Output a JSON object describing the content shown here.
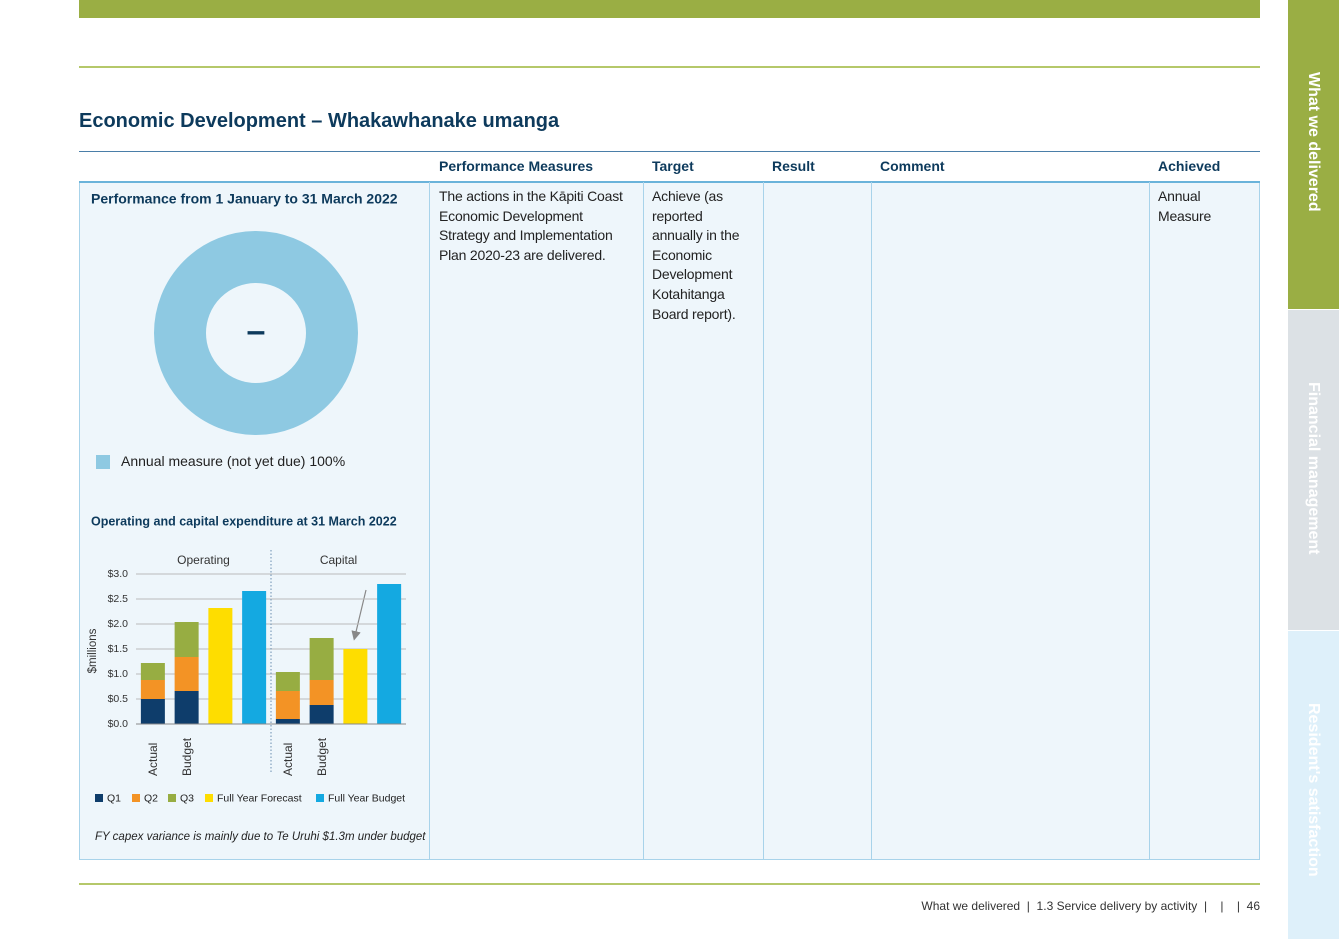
{
  "header": {
    "title": "Economic Development – Whakawhanake umanga"
  },
  "table": {
    "columns": [
      "Performance Measures",
      "Target",
      "Result",
      "Comment",
      "Achieved"
    ],
    "rows": [
      [
        "The actions in the Kāpiti Coast Economic Development Strategy and Implementation Plan 2020-23 are delivered.",
        "Achieve (as reported annually in the Economic Development Kotahitanga Board report).",
        null,
        null,
        "Annual Measure"
      ]
    ]
  },
  "chart_data": [
    {
      "type": "pie",
      "donut": true,
      "title": "Performance from 1 January to 31 March 2022",
      "center_label": "–",
      "categories": [
        "Annual measure (not yet due)"
      ],
      "values": [
        100
      ],
      "value_labels": [
        "100%"
      ],
      "colors": [
        "#8ec9e2"
      ]
    },
    {
      "type": "bar",
      "stacked": true,
      "title": "Operating and capital expenditure at 31 March 2022",
      "y_label": "$millions",
      "groups": [
        "Operating",
        "Capital"
      ],
      "categories": [
        "Actual",
        "Budget",
        null,
        null,
        "Actual",
        "Budget",
        null,
        null
      ],
      "series": [
        {
          "name": "Q1",
          "color": "#0e3d6b",
          "values": [
            0.5,
            0.66,
            null,
            null,
            0.1,
            0.38,
            null,
            null
          ]
        },
        {
          "name": "Q2",
          "color": "#f39325",
          "values": [
            0.38,
            0.68,
            null,
            null,
            0.56,
            0.5,
            null,
            null
          ]
        },
        {
          "name": "Q3",
          "color": "#97ad42",
          "values": [
            0.34,
            0.7,
            null,
            null,
            0.38,
            0.84,
            null,
            null
          ]
        },
        {
          "name": "Full Year Forecast",
          "color": "#fedd00",
          "values": [
            null,
            null,
            2.32,
            null,
            null,
            null,
            1.5,
            null
          ]
        },
        {
          "name": "Full Year Budget",
          "color": "#14a9e1",
          "values": [
            null,
            null,
            null,
            2.66,
            null,
            null,
            null,
            2.8
          ]
        }
      ],
      "ylim": [
        0,
        3
      ],
      "yticks": [
        {
          "value": 0,
          "label": "$0.0"
        },
        {
          "value": 0.5,
          "label": "$0.5"
        },
        {
          "value": 1,
          "label": "$1.0"
        },
        {
          "value": 1.5,
          "label": "$1.5"
        },
        {
          "value": 2,
          "label": "$2.0"
        },
        {
          "value": 2.5,
          "label": "$2.5"
        },
        {
          "value": 3,
          "label": "$3.0"
        }
      ],
      "grid": true,
      "note": "FY capex variance is mainly due to Te Uruhi $1.3m under budget"
    }
  ],
  "footer": {
    "text": "What we delivered  |  1.3 Service delivery by activity  |    |    |  46"
  },
  "tabs": [
    "What we delivered",
    "Financial management",
    "Resident's satisfaction"
  ]
}
